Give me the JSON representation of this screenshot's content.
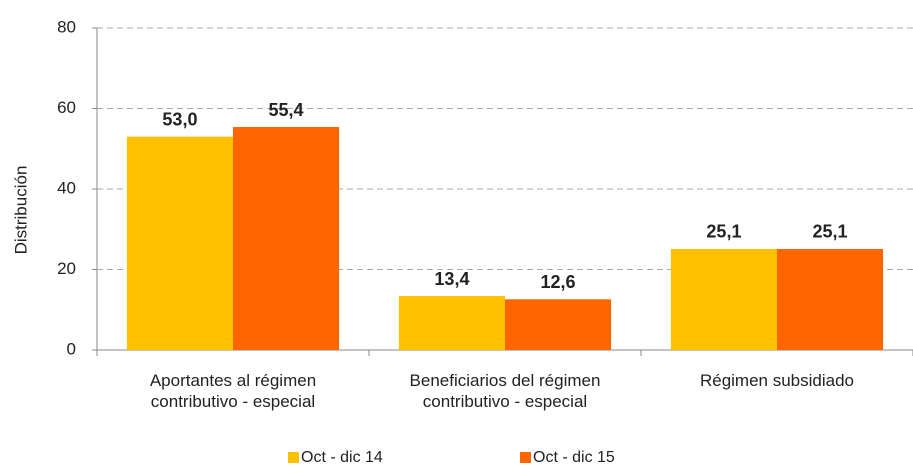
{
  "chart_data": {
    "type": "bar",
    "y_label": "Distribución",
    "categories": [
      "Aportantes al régimen contributivo - especial",
      "Beneficiarios del régimen contributivo - especial",
      "Régimen subsidiado"
    ],
    "series": [
      {
        "name": "Oct - dic 14",
        "color": "#FFC000",
        "values": [
          53.0,
          13.4,
          25.1
        ],
        "value_labels": [
          "53,0",
          "13,4",
          "25,1"
        ]
      },
      {
        "name": "Oct - dic 15",
        "color": "#FF6600",
        "values": [
          55.4,
          12.6,
          25.1
        ],
        "value_labels": [
          "55,4",
          "12,6",
          "25,1"
        ]
      }
    ],
    "ylim": [
      0,
      80
    ],
    "yticks": [
      0,
      20,
      40,
      60,
      80
    ],
    "grid": true,
    "legend": "bottom"
  }
}
